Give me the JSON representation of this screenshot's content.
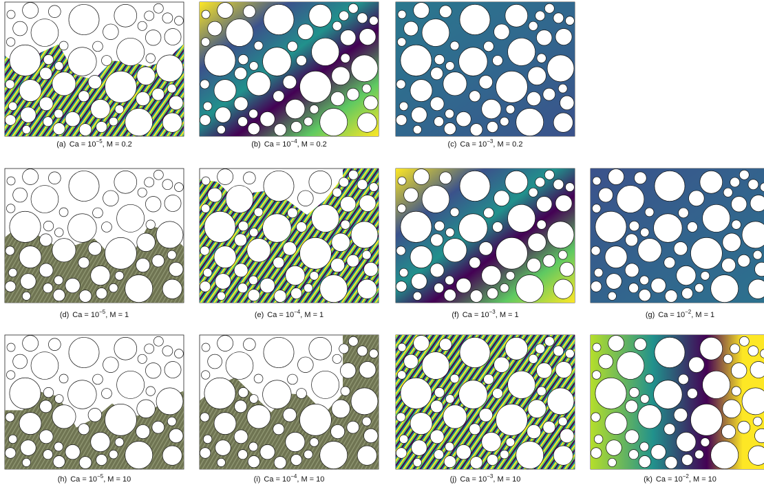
{
  "panels": [
    {
      "label": "(a)",
      "ca": "Ca = 10",
      "exponent": "−5",
      "m": ", M = 0.2"
    },
    {
      "label": "(b)",
      "ca": "Ca = 10",
      "exponent": "−4",
      "m": ", M = 0.2"
    },
    {
      "label": "(c)",
      "ca": "Ca = 10",
      "exponent": "−3",
      "m": ", M = 0.2"
    },
    {
      "label": "(d)",
      "ca": "Ca = 10",
      "exponent": "−5",
      "m": ", M = 1"
    },
    {
      "label": "(e)",
      "ca": "Ca = 10",
      "exponent": "−4",
      "m": ", M = 1"
    },
    {
      "label": "(f)",
      "ca": "Ca = 10",
      "exponent": "−3",
      "m": ", M = 1"
    },
    {
      "label": "(g)",
      "ca": "Ca = 10",
      "exponent": "−2",
      "m": ", M = 1"
    },
    {
      "label": "(h)",
      "ca": "Ca = 10",
      "exponent": "−5",
      "m": ", M = 10"
    },
    {
      "label": "(i)",
      "ca": "Ca = 10",
      "exponent": "−4",
      "m": ", M = 10"
    },
    {
      "label": "(j)",
      "ca": "Ca = 10",
      "exponent": "−3",
      "m": ", M = 10"
    },
    {
      "label": "(k)",
      "ca": "Ca = 10",
      "exponent": "−2",
      "m": ", M = 10"
    }
  ]
}
